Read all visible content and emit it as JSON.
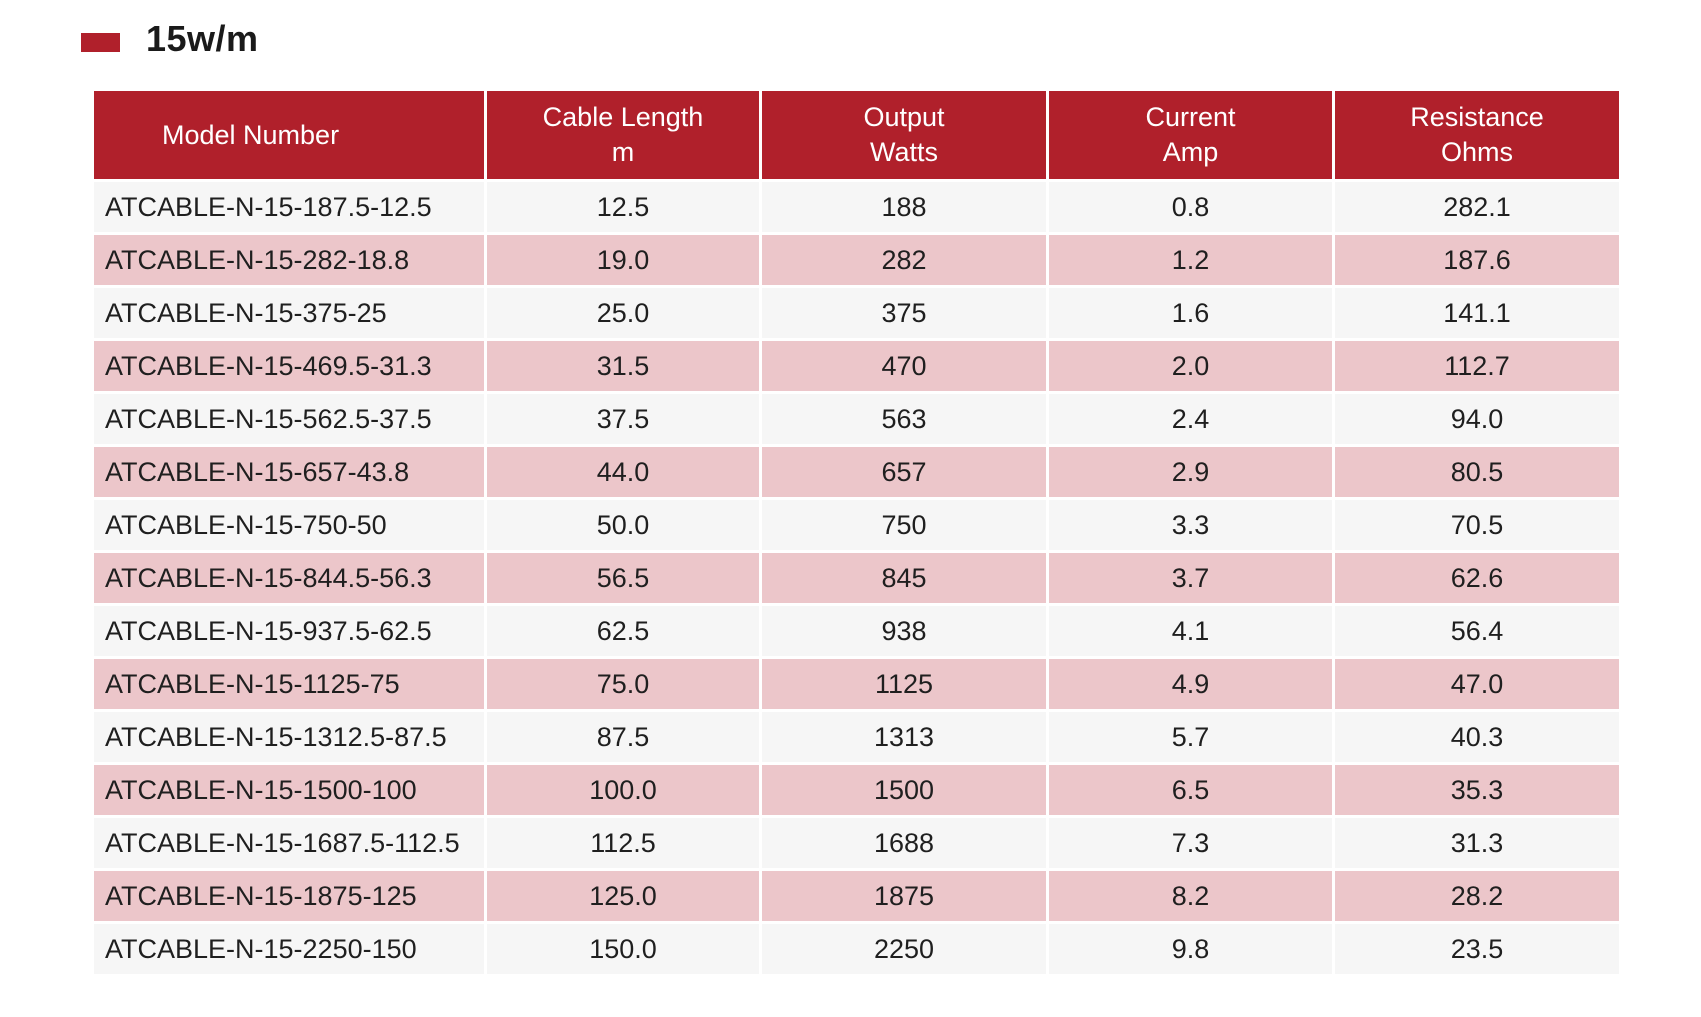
{
  "heading": {
    "title": "15w/m",
    "accent_color": "#b0202b"
  },
  "table": {
    "header_color": "#b0202b",
    "stripe_color": "#ecc6ca",
    "columns": [
      {
        "lines": [
          "Model Number"
        ]
      },
      {
        "lines": [
          "Cable Length",
          "m"
        ]
      },
      {
        "lines": [
          "Output",
          "Watts"
        ]
      },
      {
        "lines": [
          "Current",
          "Amp"
        ]
      },
      {
        "lines": [
          "Resistance",
          "Ohms"
        ]
      }
    ],
    "rows": [
      [
        "ATCABLE-N-15-187.5-12.5",
        "12.5",
        "188",
        "0.8",
        "282.1"
      ],
      [
        "ATCABLE-N-15-282-18.8",
        "19.0",
        "282",
        "1.2",
        "187.6"
      ],
      [
        "ATCABLE-N-15-375-25",
        "25.0",
        "375",
        "1.6",
        "141.1"
      ],
      [
        "ATCABLE-N-15-469.5-31.3",
        "31.5",
        "470",
        "2.0",
        "112.7"
      ],
      [
        "ATCABLE-N-15-562.5-37.5",
        "37.5",
        "563",
        "2.4",
        "94.0"
      ],
      [
        "ATCABLE-N-15-657-43.8",
        "44.0",
        "657",
        "2.9",
        "80.5"
      ],
      [
        "ATCABLE-N-15-750-50",
        "50.0",
        "750",
        "3.3",
        "70.5"
      ],
      [
        "ATCABLE-N-15-844.5-56.3",
        "56.5",
        "845",
        "3.7",
        "62.6"
      ],
      [
        "ATCABLE-N-15-937.5-62.5",
        "62.5",
        "938",
        "4.1",
        "56.4"
      ],
      [
        "ATCABLE-N-15-1125-75",
        "75.0",
        "1125",
        "4.9",
        "47.0"
      ],
      [
        "ATCABLE-N-15-1312.5-87.5",
        "87.5",
        "1313",
        "5.7",
        "40.3"
      ],
      [
        "ATCABLE-N-15-1500-100",
        "100.0",
        "1500",
        "6.5",
        "35.3"
      ],
      [
        "ATCABLE-N-15-1687.5-112.5",
        "112.5",
        "1688",
        "7.3",
        "31.3"
      ],
      [
        "ATCABLE-N-15-1875-125",
        "125.0",
        "1875",
        "8.2",
        "28.2"
      ],
      [
        "ATCABLE-N-15-2250-150",
        "150.0",
        "2250",
        "9.8",
        "23.5"
      ]
    ]
  }
}
